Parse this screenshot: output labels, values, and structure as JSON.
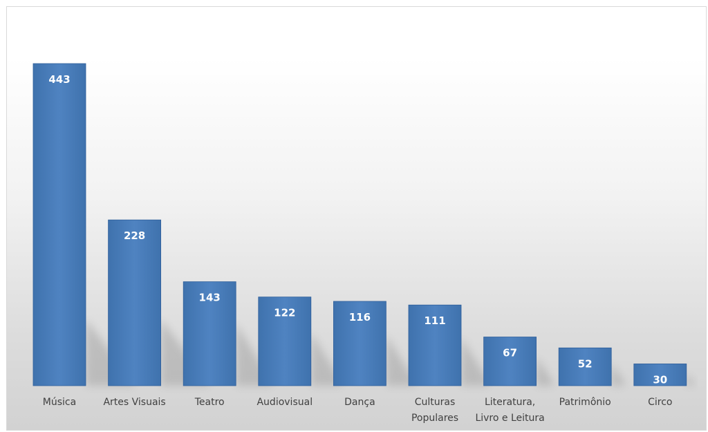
{
  "chart_data": {
    "type": "bar",
    "categories": [
      [
        "Música"
      ],
      [
        "Artes Visuais"
      ],
      [
        "Teatro"
      ],
      [
        "Audiovisual"
      ],
      [
        "Dança"
      ],
      [
        "Culturas",
        "Populares"
      ],
      [
        "Literatura,",
        "Livro e Leitura"
      ],
      [
        "Patrimônio"
      ],
      [
        "Circo"
      ]
    ],
    "values": [
      443,
      228,
      143,
      122,
      116,
      111,
      67,
      52,
      30
    ],
    "ylim": [
      0,
      443
    ],
    "grid": false,
    "legend": "none",
    "colors": {
      "bar": "#4a7ebb",
      "bar_dark": "#2f5f9b",
      "label": "#ffffff",
      "axis_text": "#404040"
    }
  }
}
